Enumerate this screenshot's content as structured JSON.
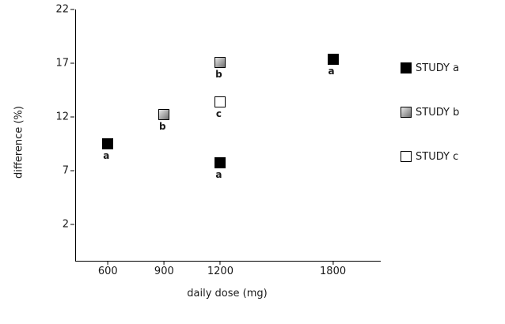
{
  "chart_data": {
    "type": "scatter",
    "title": "",
    "xlabel": "daily dose (mg)",
    "ylabel": "difference (%)",
    "xlim": [
      430,
      2055
    ],
    "ylim": [
      -1.4,
      22
    ],
    "x_ticks": [
      600,
      900,
      1200,
      1800
    ],
    "y_ticks": [
      22,
      17,
      12,
      7,
      2
    ],
    "grid": false,
    "legend_position": "right",
    "series": [
      {
        "name": "STUDY a",
        "marker": "square",
        "swatch": {
          "type": "solid",
          "color": "#000000"
        },
        "points": [
          {
            "x": 600,
            "y": 9.5,
            "label": "a"
          },
          {
            "x": 1200,
            "y": 7.7,
            "label": "a"
          },
          {
            "x": 1800,
            "y": 17.4,
            "label": "a"
          }
        ]
      },
      {
        "name": "STUDY b",
        "marker": "square",
        "swatch": {
          "type": "gradient",
          "from": "#e9e9e9",
          "to": "#6f6f6f"
        },
        "points": [
          {
            "x": 900,
            "y": 12.2,
            "label": "b"
          },
          {
            "x": 1200,
            "y": 17.1,
            "label": "b"
          }
        ]
      },
      {
        "name": "STUDY c",
        "marker": "square",
        "swatch": {
          "type": "solid",
          "color": "#ffffff"
        },
        "points": [
          {
            "x": 1200,
            "y": 13.4,
            "label": "c"
          }
        ]
      }
    ]
  },
  "colors": {
    "axis": "#000000",
    "text": "#1a1a1a",
    "background": "#ffffff"
  }
}
